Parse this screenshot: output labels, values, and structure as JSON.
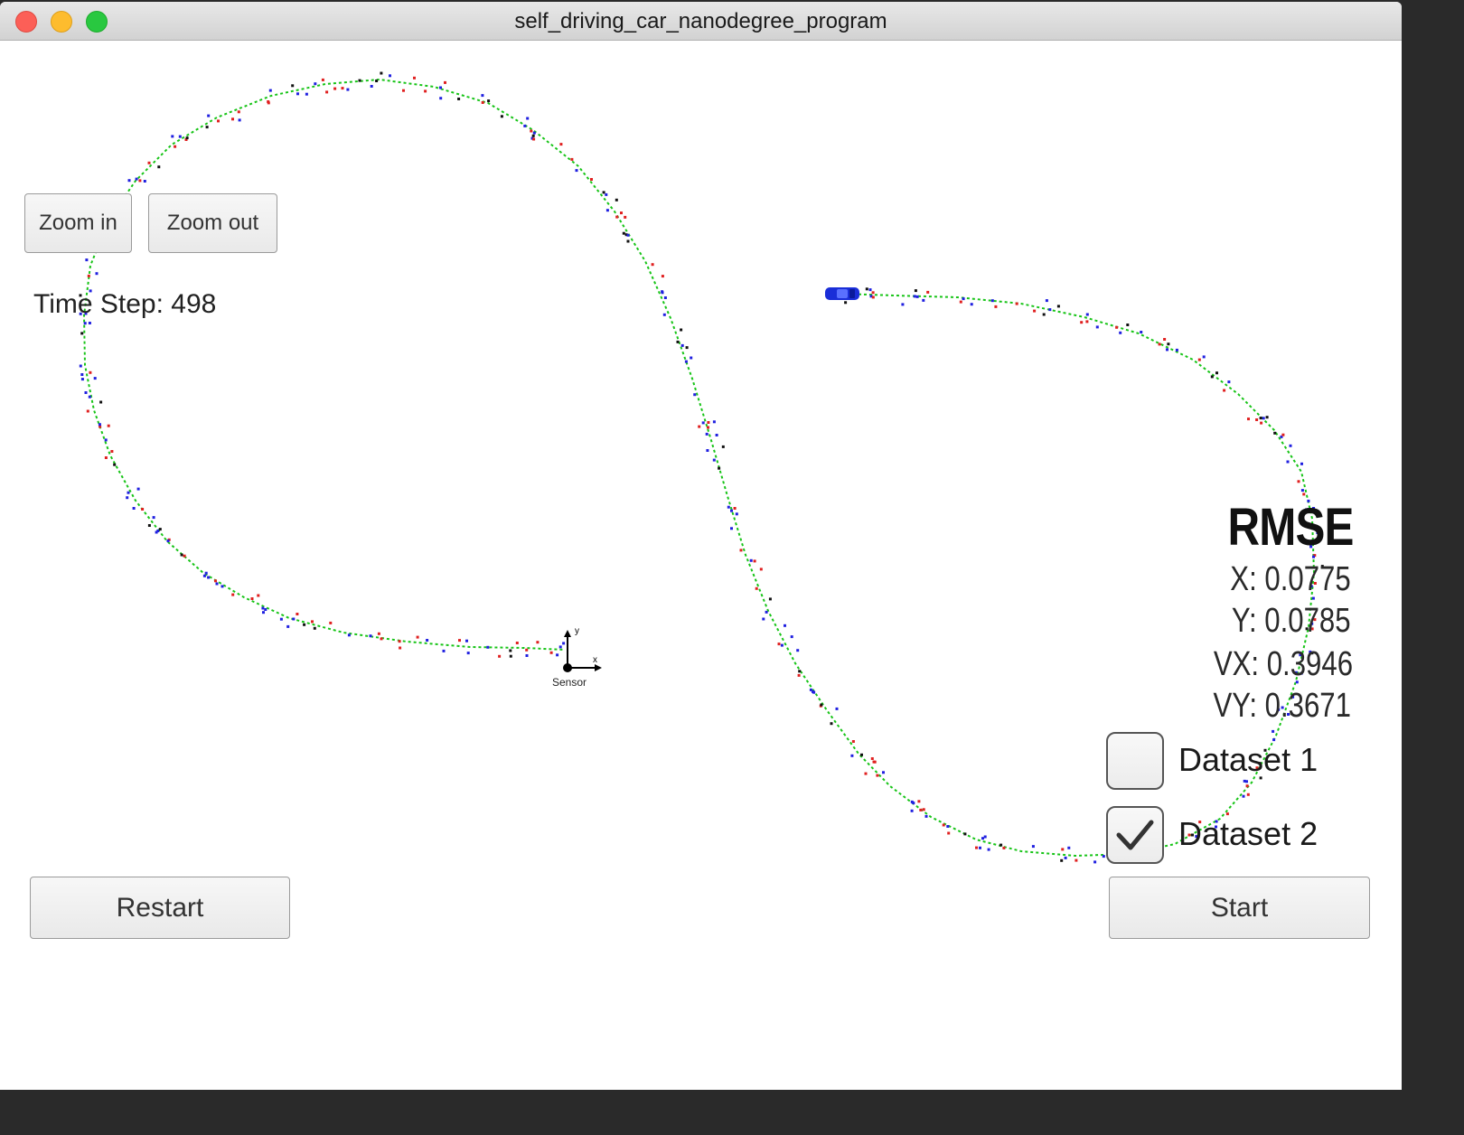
{
  "window": {
    "title": "self_driving_car_nanodegree_program"
  },
  "controls": {
    "zoom_in_label": "Zoom in",
    "zoom_out_label": "Zoom out",
    "restart_label": "Restart",
    "start_label": "Start"
  },
  "status": {
    "time_step_label": "Time Step:",
    "time_step_value": "498"
  },
  "rmse": {
    "title": "RMSE",
    "x": "X: 0.0775",
    "y": "Y: 0.0785",
    "vx": "VX: 0.3946",
    "vy": "VY: 0.3671"
  },
  "datasets": [
    {
      "label": "Dataset 1",
      "checked": false
    },
    {
      "label": "Dataset 2",
      "checked": true
    }
  ],
  "sensor": {
    "label": "Sensor",
    "x_axis": "x",
    "y_axis": "y"
  },
  "colors": {
    "estimate_path": "#17c417",
    "lidar_marker": "#e02020",
    "radar_marker": "#2020e0",
    "car": "#1a2ed8"
  }
}
